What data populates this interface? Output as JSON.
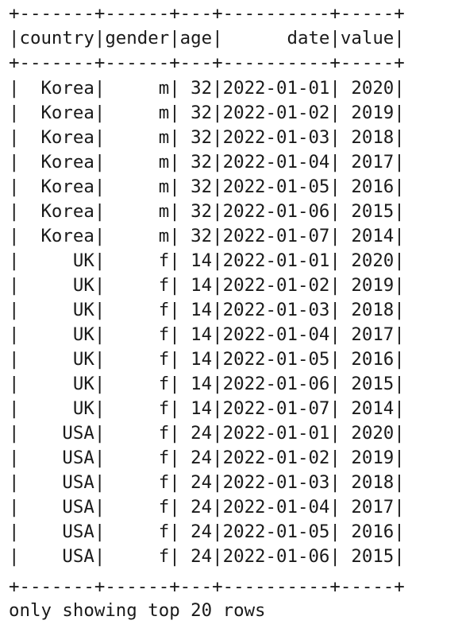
{
  "table": {
    "columns": [
      {
        "name": "country",
        "width": 7,
        "align": "right"
      },
      {
        "name": "gender",
        "width": 6,
        "align": "right"
      },
      {
        "name": "age",
        "width": 3,
        "align": "right"
      },
      {
        "name": "date",
        "width": 10,
        "align": "right"
      },
      {
        "name": "value",
        "width": 5,
        "align": "right"
      }
    ],
    "rows": [
      [
        "Korea",
        "m",
        "32",
        "2022-01-01",
        "2020"
      ],
      [
        "Korea",
        "m",
        "32",
        "2022-01-02",
        "2019"
      ],
      [
        "Korea",
        "m",
        "32",
        "2022-01-03",
        "2018"
      ],
      [
        "Korea",
        "m",
        "32",
        "2022-01-04",
        "2017"
      ],
      [
        "Korea",
        "m",
        "32",
        "2022-01-05",
        "2016"
      ],
      [
        "Korea",
        "m",
        "32",
        "2022-01-06",
        "2015"
      ],
      [
        "Korea",
        "m",
        "32",
        "2022-01-07",
        "2014"
      ],
      [
        "UK",
        "f",
        "14",
        "2022-01-01",
        "2020"
      ],
      [
        "UK",
        "f",
        "14",
        "2022-01-02",
        "2019"
      ],
      [
        "UK",
        "f",
        "14",
        "2022-01-03",
        "2018"
      ],
      [
        "UK",
        "f",
        "14",
        "2022-01-04",
        "2017"
      ],
      [
        "UK",
        "f",
        "14",
        "2022-01-05",
        "2016"
      ],
      [
        "UK",
        "f",
        "14",
        "2022-01-06",
        "2015"
      ],
      [
        "UK",
        "f",
        "14",
        "2022-01-07",
        "2014"
      ],
      [
        "USA",
        "f",
        "24",
        "2022-01-01",
        "2020"
      ],
      [
        "USA",
        "f",
        "24",
        "2022-01-02",
        "2019"
      ],
      [
        "USA",
        "f",
        "24",
        "2022-01-03",
        "2018"
      ],
      [
        "USA",
        "f",
        "24",
        "2022-01-04",
        "2017"
      ],
      [
        "USA",
        "f",
        "24",
        "2022-01-05",
        "2016"
      ],
      [
        "USA",
        "f",
        "24",
        "2022-01-06",
        "2015"
      ]
    ]
  },
  "footer": "only showing top 20 rows"
}
